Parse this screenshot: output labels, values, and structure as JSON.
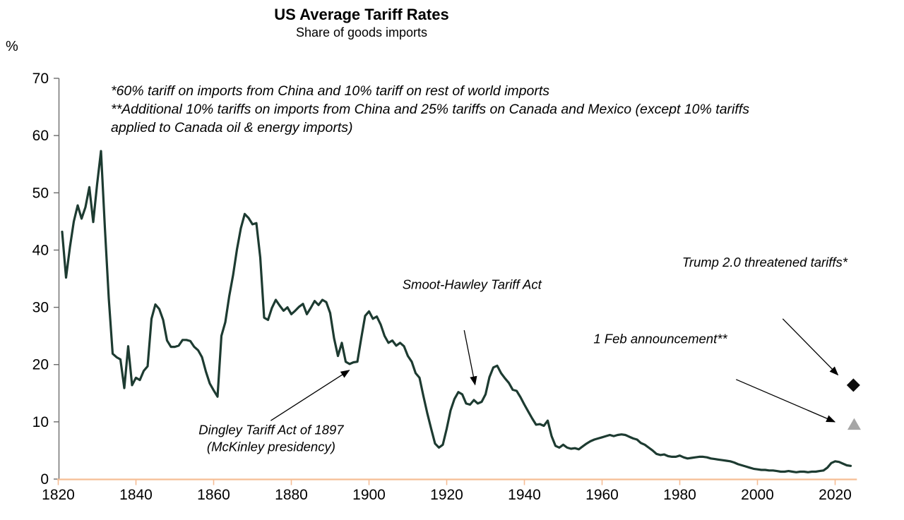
{
  "header": {
    "title": "US Average Tariff Rates",
    "subtitle": "Share of goods imports",
    "unit_label": "%"
  },
  "footnotes": {
    "line1": "*60% tariff on imports from China and 10% tariff on rest of world imports",
    "line2": "**Additional 10% tariffs on imports from China and 25% tariffs on Canada and Mexico (except 10% tariffs",
    "line3": "applied to Canada oil & energy imports)"
  },
  "colors": {
    "line": "#1d3b31",
    "x_axis": "#f5bd95",
    "y_axis": "#6b6b6b",
    "text": "#000000",
    "diamond": "#0d0d0d",
    "triangle": "#a6a6a6"
  },
  "chart_data": {
    "type": "line",
    "title": "US Average Tariff Rates",
    "subtitle": "Share of goods imports",
    "xlabel": "",
    "ylabel": "%",
    "ylim": [
      0,
      70
    ],
    "xlim": [
      1819.7,
      2025.6
    ],
    "grid": false,
    "legend": "none",
    "y_ticks": [
      0,
      10,
      20,
      30,
      40,
      50,
      60,
      70
    ],
    "x_ticks": [
      1820,
      1840,
      1860,
      1880,
      1900,
      1920,
      1940,
      1960,
      1980,
      2000,
      2020
    ],
    "series": [
      {
        "name": "US average tariff rate, share of goods imports (%)",
        "points": [
          [
            1821,
            43.2
          ],
          [
            1822,
            35.2
          ],
          [
            1823,
            40.5
          ],
          [
            1824,
            45.0
          ],
          [
            1825,
            47.8
          ],
          [
            1826,
            45.5
          ],
          [
            1827,
            47.5
          ],
          [
            1828,
            51.0
          ],
          [
            1829,
            44.9
          ],
          [
            1830,
            51.5
          ],
          [
            1831,
            57.3
          ],
          [
            1832,
            43.9
          ],
          [
            1833,
            31.6
          ],
          [
            1834,
            21.9
          ],
          [
            1835,
            21.3
          ],
          [
            1836,
            20.9
          ],
          [
            1837,
            15.9
          ],
          [
            1838,
            23.2
          ],
          [
            1839,
            16.4
          ],
          [
            1840,
            17.7
          ],
          [
            1841,
            17.3
          ],
          [
            1842,
            18.9
          ],
          [
            1843,
            19.7
          ],
          [
            1844,
            28.0
          ],
          [
            1845,
            30.5
          ],
          [
            1846,
            29.7
          ],
          [
            1847,
            27.8
          ],
          [
            1848,
            24.2
          ],
          [
            1849,
            23.1
          ],
          [
            1850,
            23.1
          ],
          [
            1851,
            23.3
          ],
          [
            1852,
            24.3
          ],
          [
            1853,
            24.3
          ],
          [
            1854,
            24.1
          ],
          [
            1855,
            23.1
          ],
          [
            1856,
            22.5
          ],
          [
            1857,
            21.3
          ],
          [
            1858,
            18.8
          ],
          [
            1859,
            16.7
          ],
          [
            1860,
            15.5
          ],
          [
            1861,
            14.4
          ],
          [
            1862,
            25.0
          ],
          [
            1863,
            27.4
          ],
          [
            1864,
            31.9
          ],
          [
            1865,
            35.6
          ],
          [
            1866,
            40.1
          ],
          [
            1867,
            43.8
          ],
          [
            1868,
            46.3
          ],
          [
            1869,
            45.6
          ],
          [
            1870,
            44.5
          ],
          [
            1871,
            44.7
          ],
          [
            1872,
            38.7
          ],
          [
            1873,
            28.2
          ],
          [
            1874,
            27.8
          ],
          [
            1875,
            29.9
          ],
          [
            1876,
            31.3
          ],
          [
            1877,
            30.3
          ],
          [
            1878,
            29.4
          ],
          [
            1879,
            30.0
          ],
          [
            1880,
            28.8
          ],
          [
            1881,
            29.4
          ],
          [
            1882,
            30.1
          ],
          [
            1883,
            30.6
          ],
          [
            1884,
            28.8
          ],
          [
            1885,
            29.9
          ],
          [
            1886,
            31.1
          ],
          [
            1887,
            30.4
          ],
          [
            1888,
            31.3
          ],
          [
            1889,
            30.9
          ],
          [
            1890,
            29.0
          ],
          [
            1891,
            24.6
          ],
          [
            1892,
            21.5
          ],
          [
            1893,
            23.8
          ],
          [
            1894,
            20.5
          ],
          [
            1895,
            20.1
          ],
          [
            1896,
            20.4
          ],
          [
            1897,
            20.5
          ],
          [
            1898,
            24.6
          ],
          [
            1899,
            28.5
          ],
          [
            1900,
            29.3
          ],
          [
            1901,
            28.0
          ],
          [
            1902,
            28.4
          ],
          [
            1903,
            27.0
          ],
          [
            1904,
            25.0
          ],
          [
            1905,
            23.8
          ],
          [
            1906,
            24.2
          ],
          [
            1907,
            23.3
          ],
          [
            1908,
            23.8
          ],
          [
            1909,
            23.2
          ],
          [
            1910,
            21.5
          ],
          [
            1911,
            20.5
          ],
          [
            1912,
            18.5
          ],
          [
            1913,
            17.7
          ],
          [
            1914,
            14.5
          ],
          [
            1915,
            11.5
          ],
          [
            1916,
            8.8
          ],
          [
            1917,
            6.2
          ],
          [
            1918,
            5.5
          ],
          [
            1919,
            6.0
          ],
          [
            1920,
            8.8
          ],
          [
            1921,
            12.0
          ],
          [
            1922,
            14.0
          ],
          [
            1923,
            15.2
          ],
          [
            1924,
            14.8
          ],
          [
            1925,
            13.2
          ],
          [
            1926,
            13.0
          ],
          [
            1927,
            13.8
          ],
          [
            1928,
            13.2
          ],
          [
            1929,
            13.5
          ],
          [
            1930,
            14.8
          ],
          [
            1931,
            17.8
          ],
          [
            1932,
            19.5
          ],
          [
            1933,
            19.8
          ],
          [
            1934,
            18.5
          ],
          [
            1935,
            17.6
          ],
          [
            1936,
            16.8
          ],
          [
            1937,
            15.6
          ],
          [
            1938,
            15.4
          ],
          [
            1939,
            14.3
          ],
          [
            1940,
            13.0
          ],
          [
            1941,
            11.8
          ],
          [
            1942,
            10.6
          ],
          [
            1943,
            9.5
          ],
          [
            1944,
            9.6
          ],
          [
            1945,
            9.3
          ],
          [
            1946,
            10.2
          ],
          [
            1947,
            7.5
          ],
          [
            1948,
            5.8
          ],
          [
            1949,
            5.5
          ],
          [
            1950,
            6.0
          ],
          [
            1951,
            5.5
          ],
          [
            1952,
            5.3
          ],
          [
            1953,
            5.4
          ],
          [
            1954,
            5.2
          ],
          [
            1955,
            5.7
          ],
          [
            1956,
            6.2
          ],
          [
            1957,
            6.6
          ],
          [
            1958,
            6.9
          ],
          [
            1959,
            7.1
          ],
          [
            1960,
            7.3
          ],
          [
            1961,
            7.5
          ],
          [
            1962,
            7.7
          ],
          [
            1963,
            7.5
          ],
          [
            1964,
            7.7
          ],
          [
            1965,
            7.8
          ],
          [
            1966,
            7.7
          ],
          [
            1967,
            7.4
          ],
          [
            1968,
            7.1
          ],
          [
            1969,
            6.9
          ],
          [
            1970,
            6.3
          ],
          [
            1971,
            6.0
          ],
          [
            1972,
            5.5
          ],
          [
            1973,
            5.0
          ],
          [
            1974,
            4.4
          ],
          [
            1975,
            4.2
          ],
          [
            1976,
            4.3
          ],
          [
            1977,
            4.0
          ],
          [
            1978,
            3.9
          ],
          [
            1979,
            3.9
          ],
          [
            1980,
            4.1
          ],
          [
            1981,
            3.8
          ],
          [
            1982,
            3.6
          ],
          [
            1983,
            3.7
          ],
          [
            1984,
            3.8
          ],
          [
            1985,
            3.9
          ],
          [
            1986,
            3.9
          ],
          [
            1987,
            3.8
          ],
          [
            1988,
            3.6
          ],
          [
            1989,
            3.5
          ],
          [
            1990,
            3.4
          ],
          [
            1991,
            3.3
          ],
          [
            1992,
            3.2
          ],
          [
            1993,
            3.1
          ],
          [
            1994,
            2.9
          ],
          [
            1995,
            2.6
          ],
          [
            1996,
            2.4
          ],
          [
            1997,
            2.2
          ],
          [
            1998,
            2.0
          ],
          [
            1999,
            1.8
          ],
          [
            2000,
            1.7
          ],
          [
            2001,
            1.6
          ],
          [
            2002,
            1.6
          ],
          [
            2003,
            1.5
          ],
          [
            2004,
            1.5
          ],
          [
            2005,
            1.4
          ],
          [
            2006,
            1.3
          ],
          [
            2007,
            1.3
          ],
          [
            2008,
            1.4
          ],
          [
            2009,
            1.3
          ],
          [
            2010,
            1.2
          ],
          [
            2011,
            1.3
          ],
          [
            2012,
            1.3
          ],
          [
            2013,
            1.2
          ],
          [
            2014,
            1.3
          ],
          [
            2015,
            1.3
          ],
          [
            2016,
            1.4
          ],
          [
            2017,
            1.5
          ],
          [
            2018,
            2.0
          ],
          [
            2019,
            2.8
          ],
          [
            2020,
            3.1
          ],
          [
            2021,
            3.0
          ],
          [
            2022,
            2.7
          ],
          [
            2023,
            2.4
          ],
          [
            2024,
            2.3
          ]
        ]
      }
    ],
    "markers": [
      {
        "shape": "diamond",
        "color": "#0d0d0d",
        "year": 2024.7,
        "value": 16.4,
        "label": "Trump 2.0 threatened tariffs*"
      },
      {
        "shape": "triangle",
        "color": "#a6a6a6",
        "year": 2024.9,
        "value": 9.6,
        "label": "1 Feb announcement**"
      }
    ],
    "annotations": [
      {
        "id": "smoot",
        "lines": [
          "Smoot-Hawley Tariff Act"
        ],
        "label_year": 1926.5,
        "label_value": 33.2,
        "arrow": {
          "from": [
            1924.5,
            26.0
          ],
          "to": [
            1927.3,
            16.5
          ]
        }
      },
      {
        "id": "dingley",
        "lines": [
          "Dingley Tariff Act of 1897",
          "(McKinley presidency)"
        ],
        "label_year": 1874.8,
        "label_value": 7.8,
        "arrow": {
          "from": [
            1874.7,
            10.2
          ],
          "to": [
            1894.9,
            19.0
          ]
        }
      },
      {
        "id": "trump",
        "lines": [
          "Trump 2.0 threatened tariffs*"
        ],
        "label_year": 2001.9,
        "label_value": 37.1,
        "arrow": {
          "from": [
            2006.5,
            28.0
          ],
          "to": [
            2020.7,
            18.2
          ]
        }
      },
      {
        "id": "feb",
        "lines": [
          "1 Feb announcement**"
        ],
        "label_year": 1975.0,
        "label_value": 23.7,
        "arrow": {
          "from": [
            1994.5,
            17.4
          ],
          "to": [
            2019.9,
            10.0
          ]
        }
      }
    ]
  }
}
